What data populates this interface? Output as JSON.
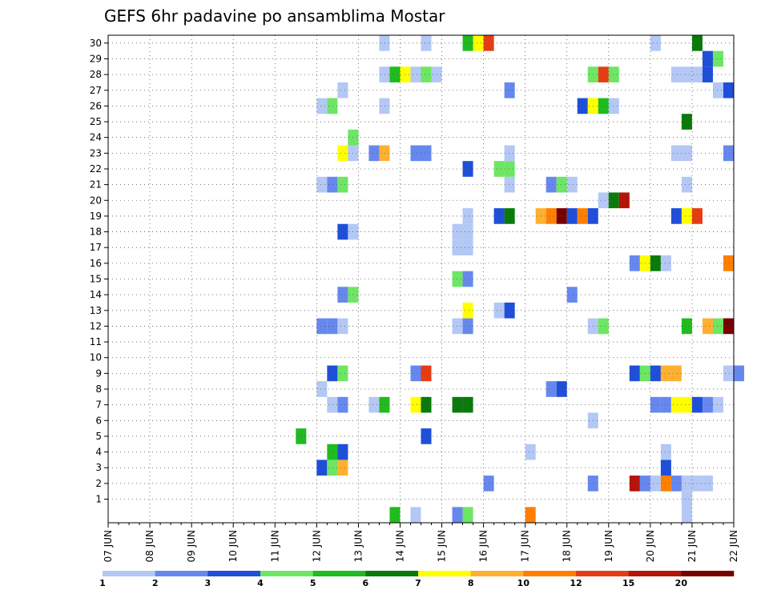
{
  "chart_data": {
    "type": "heatmap",
    "title": "GEFS 6hr padavine po ansamblima Mostar",
    "x_ticks": [
      "07 JUN",
      "08 JUN",
      "09 JUN",
      "10 JUN",
      "11 JUN",
      "12 JUN",
      "13 JUN",
      "14 JUN",
      "15 JUN",
      "16 JUN",
      "17 JUN",
      "18 JUN",
      "19 JUN",
      "20 JUN",
      "21 JUN",
      "22 JUN"
    ],
    "y_ticks": [
      "1",
      "2",
      "3",
      "4",
      "5",
      "6",
      "7",
      "8",
      "9",
      "10",
      "11",
      "12",
      "13",
      "14",
      "15",
      "16",
      "17",
      "18",
      "19",
      "20",
      "21",
      "22",
      "23",
      "24",
      "25",
      "26",
      "27",
      "28",
      "29",
      "30"
    ],
    "time_step_hours": 6,
    "grid": "dotted",
    "colorbar": {
      "levels": [
        "1",
        "2",
        "3",
        "4",
        "5",
        "6",
        "7",
        "8",
        "10",
        "12",
        "15",
        "20"
      ],
      "colors": [
        "#b4c8f5",
        "#6688ee",
        "#1f4fd8",
        "#6de663",
        "#1fbb1f",
        "#0a7a0a",
        "#ffff00",
        "#ffb030",
        "#ff7f00",
        "#e63c14",
        "#b4140a",
        "#780000"
      ]
    },
    "cells": [
      {
        "m": 0,
        "t": 27,
        "c": 4
      },
      {
        "m": 0,
        "t": 29,
        "c": 0
      },
      {
        "m": 0,
        "t": 33,
        "c": 1
      },
      {
        "m": 0,
        "t": 34,
        "c": 3
      },
      {
        "m": 0,
        "t": 40,
        "c": 8
      },
      {
        "m": 0,
        "t": 55,
        "c": 0
      },
      {
        "m": 1,
        "t": 55,
        "c": 0
      },
      {
        "m": 2,
        "t": 36,
        "c": 1
      },
      {
        "m": 2,
        "t": 46,
        "c": 1
      },
      {
        "m": 2,
        "t": 50,
        "c": 10
      },
      {
        "m": 2,
        "t": 51,
        "c": 1
      },
      {
        "m": 2,
        "t": 52,
        "c": 0
      },
      {
        "m": 2,
        "t": 53,
        "c": 8
      },
      {
        "m": 2,
        "t": 54,
        "c": 1
      },
      {
        "m": 2,
        "t": 55,
        "c": 0
      },
      {
        "m": 2,
        "t": 56,
        "c": 0
      },
      {
        "m": 2,
        "t": 57,
        "c": 0
      },
      {
        "m": 3,
        "t": 20,
        "c": 2
      },
      {
        "m": 3,
        "t": 21,
        "c": 3
      },
      {
        "m": 3,
        "t": 22,
        "c": 7
      },
      {
        "m": 3,
        "t": 53,
        "c": 2
      },
      {
        "m": 4,
        "t": 21,
        "c": 4
      },
      {
        "m": 4,
        "t": 22,
        "c": 2
      },
      {
        "m": 4,
        "t": 40,
        "c": 0
      },
      {
        "m": 4,
        "t": 53,
        "c": 0
      },
      {
        "m": 5,
        "t": 18,
        "c": 4
      },
      {
        "m": 5,
        "t": 30,
        "c": 2
      },
      {
        "m": 6,
        "t": 46,
        "c": 0
      },
      {
        "m": 7,
        "t": 21,
        "c": 0
      },
      {
        "m": 7,
        "t": 22,
        "c": 1
      },
      {
        "m": 7,
        "t": 25,
        "c": 0
      },
      {
        "m": 7,
        "t": 26,
        "c": 4
      },
      {
        "m": 7,
        "t": 29,
        "c": 6
      },
      {
        "m": 7,
        "t": 30,
        "c": 5
      },
      {
        "m": 7,
        "t": 33,
        "c": 5
      },
      {
        "m": 7,
        "t": 34,
        "c": 5
      },
      {
        "m": 7,
        "t": 52,
        "c": 1
      },
      {
        "m": 7,
        "t": 53,
        "c": 1
      },
      {
        "m": 7,
        "t": 54,
        "c": 6
      },
      {
        "m": 7,
        "t": 55,
        "c": 6
      },
      {
        "m": 7,
        "t": 56,
        "c": 2
      },
      {
        "m": 7,
        "t": 57,
        "c": 1
      },
      {
        "m": 7,
        "t": 58,
        "c": 0
      },
      {
        "m": 8,
        "t": 20,
        "c": 0
      },
      {
        "m": 8,
        "t": 42,
        "c": 1
      },
      {
        "m": 8,
        "t": 43,
        "c": 2
      },
      {
        "m": 9,
        "t": 21,
        "c": 2
      },
      {
        "m": 9,
        "t": 22,
        "c": 3
      },
      {
        "m": 9,
        "t": 29,
        "c": 1
      },
      {
        "m": 9,
        "t": 30,
        "c": 9
      },
      {
        "m": 9,
        "t": 50,
        "c": 2
      },
      {
        "m": 9,
        "t": 51,
        "c": 3
      },
      {
        "m": 9,
        "t": 52,
        "c": 2
      },
      {
        "m": 9,
        "t": 53,
        "c": 7
      },
      {
        "m": 9,
        "t": 54,
        "c": 7
      },
      {
        "m": 9,
        "t": 59,
        "c": 0
      },
      {
        "m": 9,
        "t": 60,
        "c": 1
      },
      {
        "m": 12,
        "t": 20,
        "c": 1
      },
      {
        "m": 12,
        "t": 21,
        "c": 1
      },
      {
        "m": 12,
        "t": 22,
        "c": 0
      },
      {
        "m": 12,
        "t": 33,
        "c": 0
      },
      {
        "m": 12,
        "t": 34,
        "c": 1
      },
      {
        "m": 12,
        "t": 46,
        "c": 0
      },
      {
        "m": 12,
        "t": 47,
        "c": 3
      },
      {
        "m": 12,
        "t": 55,
        "c": 4
      },
      {
        "m": 12,
        "t": 57,
        "c": 7
      },
      {
        "m": 12,
        "t": 58,
        "c": 3
      },
      {
        "m": 12,
        "t": 59,
        "c": 11
      },
      {
        "m": 13,
        "t": 34,
        "c": 6
      },
      {
        "m": 13,
        "t": 37,
        "c": 0
      },
      {
        "m": 13,
        "t": 38,
        "c": 2
      },
      {
        "m": 14,
        "t": 22,
        "c": 1
      },
      {
        "m": 14,
        "t": 23,
        "c": 3
      },
      {
        "m": 14,
        "t": 44,
        "c": 1
      },
      {
        "m": 15,
        "t": 33,
        "c": 3
      },
      {
        "m": 15,
        "t": 34,
        "c": 1
      },
      {
        "m": 16,
        "t": 50,
        "c": 1
      },
      {
        "m": 16,
        "t": 51,
        "c": 6
      },
      {
        "m": 16,
        "t": 52,
        "c": 5
      },
      {
        "m": 16,
        "t": 53,
        "c": 0
      },
      {
        "m": 16,
        "t": 59,
        "c": 8
      },
      {
        "m": 17,
        "t": 33,
        "c": 0
      },
      {
        "m": 17,
        "t": 34,
        "c": 0
      },
      {
        "m": 18,
        "t": 22,
        "c": 2
      },
      {
        "m": 18,
        "t": 23,
        "c": 0
      },
      {
        "m": 18,
        "t": 33,
        "c": 0
      },
      {
        "m": 18,
        "t": 34,
        "c": 0
      },
      {
        "m": 19,
        "t": 34,
        "c": 0
      },
      {
        "m": 19,
        "t": 37,
        "c": 2
      },
      {
        "m": 19,
        "t": 38,
        "c": 5
      },
      {
        "m": 19,
        "t": 41,
        "c": 7
      },
      {
        "m": 19,
        "t": 42,
        "c": 8
      },
      {
        "m": 19,
        "t": 43,
        "c": 11
      },
      {
        "m": 19,
        "t": 44,
        "c": 2
      },
      {
        "m": 19,
        "t": 45,
        "c": 8
      },
      {
        "m": 19,
        "t": 46,
        "c": 2
      },
      {
        "m": 19,
        "t": 54,
        "c": 2
      },
      {
        "m": 19,
        "t": 55,
        "c": 6
      },
      {
        "m": 19,
        "t": 56,
        "c": 9
      },
      {
        "m": 20,
        "t": 47,
        "c": 0
      },
      {
        "m": 20,
        "t": 48,
        "c": 5
      },
      {
        "m": 20,
        "t": 49,
        "c": 10
      },
      {
        "m": 21,
        "t": 20,
        "c": 0
      },
      {
        "m": 21,
        "t": 21,
        "c": 1
      },
      {
        "m": 21,
        "t": 22,
        "c": 3
      },
      {
        "m": 21,
        "t": 38,
        "c": 0
      },
      {
        "m": 21,
        "t": 42,
        "c": 1
      },
      {
        "m": 21,
        "t": 43,
        "c": 3
      },
      {
        "m": 21,
        "t": 44,
        "c": 0
      },
      {
        "m": 21,
        "t": 55,
        "c": 0
      },
      {
        "m": 22,
        "t": 34,
        "c": 2
      },
      {
        "m": 22,
        "t": 37,
        "c": 3
      },
      {
        "m": 22,
        "t": 38,
        "c": 3
      },
      {
        "m": 23,
        "t": 22,
        "c": 6
      },
      {
        "m": 23,
        "t": 23,
        "c": 0
      },
      {
        "m": 23,
        "t": 25,
        "c": 1
      },
      {
        "m": 23,
        "t": 26,
        "c": 7
      },
      {
        "m": 23,
        "t": 29,
        "c": 1
      },
      {
        "m": 23,
        "t": 30,
        "c": 1
      },
      {
        "m": 23,
        "t": 38,
        "c": 0
      },
      {
        "m": 23,
        "t": 54,
        "c": 0
      },
      {
        "m": 23,
        "t": 55,
        "c": 0
      },
      {
        "m": 23,
        "t": 59,
        "c": 1
      },
      {
        "m": 24,
        "t": 23,
        "c": 3
      },
      {
        "m": 25,
        "t": 55,
        "c": 5
      },
      {
        "m": 26,
        "t": 20,
        "c": 0
      },
      {
        "m": 26,
        "t": 21,
        "c": 3
      },
      {
        "m": 26,
        "t": 26,
        "c": 0
      },
      {
        "m": 26,
        "t": 45,
        "c": 2
      },
      {
        "m": 26,
        "t": 46,
        "c": 6
      },
      {
        "m": 26,
        "t": 47,
        "c": 4
      },
      {
        "m": 26,
        "t": 48,
        "c": 0
      },
      {
        "m": 27,
        "t": 22,
        "c": 0
      },
      {
        "m": 27,
        "t": 38,
        "c": 1
      },
      {
        "m": 27,
        "t": 58,
        "c": 0
      },
      {
        "m": 27,
        "t": 59,
        "c": 2
      },
      {
        "m": 28,
        "t": 26,
        "c": 0
      },
      {
        "m": 28,
        "t": 27,
        "c": 4
      },
      {
        "m": 28,
        "t": 28,
        "c": 6
      },
      {
        "m": 28,
        "t": 29,
        "c": 0
      },
      {
        "m": 28,
        "t": 30,
        "c": 3
      },
      {
        "m": 28,
        "t": 31,
        "c": 0
      },
      {
        "m": 28,
        "t": 46,
        "c": 3
      },
      {
        "m": 28,
        "t": 47,
        "c": 9
      },
      {
        "m": 28,
        "t": 48,
        "c": 3
      },
      {
        "m": 28,
        "t": 54,
        "c": 0
      },
      {
        "m": 28,
        "t": 55,
        "c": 0
      },
      {
        "m": 28,
        "t": 56,
        "c": 0
      },
      {
        "m": 28,
        "t": 57,
        "c": 2
      },
      {
        "m": 29,
        "t": 57,
        "c": 2
      },
      {
        "m": 29,
        "t": 58,
        "c": 3
      },
      {
        "m": 30,
        "t": 26,
        "c": 0
      },
      {
        "m": 30,
        "t": 30,
        "c": 0
      },
      {
        "m": 30,
        "t": 34,
        "c": 4
      },
      {
        "m": 30,
        "t": 35,
        "c": 6
      },
      {
        "m": 30,
        "t": 36,
        "c": 9
      },
      {
        "m": 30,
        "t": 52,
        "c": 0
      },
      {
        "m": 30,
        "t": 56,
        "c": 5
      }
    ]
  }
}
